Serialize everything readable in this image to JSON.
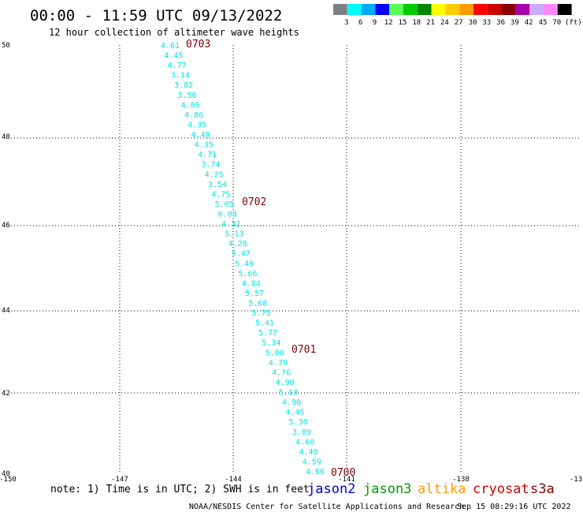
{
  "title": "00:00 - 11:59 UTC 09/13/2022",
  "subtitle": "12 hour collection of altimeter wave heights",
  "legend": {
    "unit": "(ft)",
    "bins": [
      {
        "label": "3",
        "color": "#7f7f7f"
      },
      {
        "label": "6",
        "color": "#00ffff"
      },
      {
        "label": "9",
        "color": "#00aaff"
      },
      {
        "label": "12",
        "color": "#0000ff"
      },
      {
        "label": "15",
        "color": "#55ff55"
      },
      {
        "label": "18",
        "color": "#00cc00"
      },
      {
        "label": "21",
        "color": "#008800"
      },
      {
        "label": "24",
        "color": "#ffff00"
      },
      {
        "label": "27",
        "color": "#ffcc00"
      },
      {
        "label": "30",
        "color": "#ff9900"
      },
      {
        "label": "33",
        "color": "#ff0000"
      },
      {
        "label": "36",
        "color": "#cc0000"
      },
      {
        "label": "39",
        "color": "#880000"
      },
      {
        "label": "42",
        "color": "#aa00aa"
      },
      {
        "label": "45",
        "color": "#ccaaff"
      },
      {
        "label": "70",
        "color": "#ff88ff"
      },
      {
        "label": "",
        "color": "#000000"
      }
    ]
  },
  "map": {
    "lon_range": [
      -150,
      -135
    ],
    "lat_range": [
      40,
      50
    ],
    "lon_tick_labels": [
      "-150",
      "-147",
      "-144",
      "-141",
      "-138",
      "-13"
    ],
    "lat_tick_labels": [
      "50",
      "48",
      "46",
      "44",
      "42",
      "40"
    ],
    "grid": "dotted",
    "track_color": "#00e5e5",
    "time_label_color": "#800000",
    "swh_labels": [
      "4.61",
      "4.45",
      "4.77",
      "3.14",
      "3.82",
      "3.56",
      "4.05",
      "4.86",
      "4.35",
      "4.49",
      "4.35",
      "4.71",
      "3.74",
      "4.25",
      "3.54",
      "4.75",
      "5.05",
      "6.08",
      "4.32",
      "5.13",
      "4.28",
      "5.47",
      "5.49",
      "5.66",
      "4.84",
      "5.57",
      "5.68",
      "5.75",
      "5.41",
      "5.77",
      "5.34",
      "5.00",
      "4.79",
      "4.76",
      "4.90",
      "5.13",
      "4.90",
      "4.45",
      "5.30",
      "3.89",
      "4.60",
      "4.49",
      "4.59",
      "4.66"
    ],
    "time_labels": [
      "0703",
      "0702",
      "0701",
      "0700"
    ]
  },
  "note": "note: 1) Time is in UTC; 2) SWH is in feet",
  "satellites": [
    {
      "name": "jason2",
      "color": "#0000cc"
    },
    {
      "name": "jason3",
      "color": "#009900"
    },
    {
      "name": "altika",
      "color": "#ff9900"
    },
    {
      "name": "cryosat",
      "color": "#cc0000"
    },
    {
      "name": "s3a",
      "color": "#880000"
    }
  ],
  "footer": {
    "credit": "NOAA/NESDIS Center for Satellite Applications and Research",
    "timestamp": "Sep 15 08:29:16 UTC 2022"
  }
}
